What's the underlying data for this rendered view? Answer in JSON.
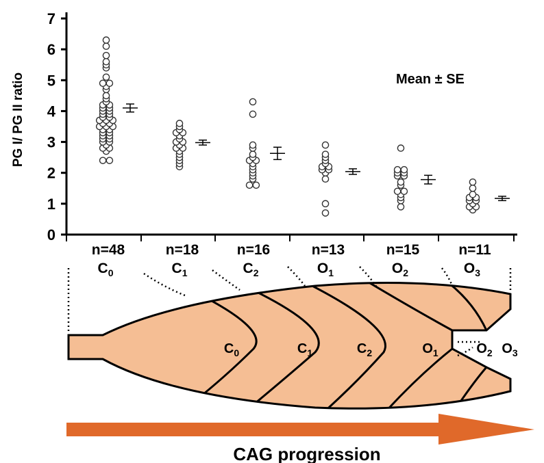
{
  "chart_data": {
    "type": "scatter",
    "ylabel": "PG I/ PG II ratio",
    "xlabel": "",
    "ylim": [
      0,
      7
    ],
    "yticks": [
      0,
      1,
      2,
      3,
      4,
      5,
      6,
      7
    ],
    "annotation": "Mean ± SE",
    "groups": [
      {
        "n_label": "n=48",
        "label": "C",
        "sub": "0",
        "points": [
          6.3,
          6.1,
          5.8,
          5.6,
          5.5,
          5.4,
          5.1,
          4.9,
          4.9,
          4.8,
          4.7,
          4.5,
          4.4,
          4.3,
          4.2,
          4.2,
          4.1,
          4.1,
          4.0,
          4.0,
          3.9,
          3.9,
          3.8,
          3.8,
          3.7,
          3.7,
          3.7,
          3.6,
          3.6,
          3.5,
          3.5,
          3.5,
          3.4,
          3.4,
          3.3,
          3.3,
          3.2,
          3.2,
          3.1,
          3.1,
          3.0,
          3.0,
          2.9,
          2.8,
          2.8,
          2.7,
          2.4,
          2.4
        ],
        "mean": 4.1,
        "se": 0.13
      },
      {
        "n_label": "n=18",
        "label": "C",
        "sub": "1",
        "points": [
          3.6,
          3.5,
          3.4,
          3.3,
          3.3,
          3.2,
          3.1,
          3.0,
          3.0,
          2.9,
          2.8,
          2.8,
          2.7,
          2.6,
          2.5,
          2.4,
          2.3,
          2.2
        ],
        "mean": 2.98,
        "se": 0.08
      },
      {
        "n_label": "n=16",
        "label": "C",
        "sub": "2",
        "points": [
          4.3,
          3.9,
          2.9,
          2.8,
          2.6,
          2.5,
          2.4,
          2.4,
          2.3,
          2.2,
          2.1,
          2.0,
          1.9,
          1.8,
          1.6,
          1.6
        ],
        "mean": 2.63,
        "se": 0.2
      },
      {
        "n_label": "n=13",
        "label": "O",
        "sub": "1",
        "points": [
          2.9,
          2.6,
          2.5,
          2.4,
          2.3,
          2.2,
          2.2,
          2.1,
          2.0,
          1.8,
          1.0,
          0.7,
          2.1
        ],
        "mean": 2.04,
        "se": 0.09
      },
      {
        "n_label": "n=15",
        "label": "O",
        "sub": "2",
        "points": [
          2.8,
          2.1,
          2.1,
          2.0,
          2.0,
          1.9,
          1.9,
          1.7,
          1.6,
          1.4,
          1.4,
          1.3,
          1.2,
          1.1,
          0.9
        ],
        "mean": 1.78,
        "se": 0.14
      },
      {
        "n_label": "n=11",
        "label": "O",
        "sub": "3",
        "points": [
          1.7,
          1.5,
          1.3,
          1.2,
          1.2,
          1.1,
          1.1,
          1.0,
          0.9,
          0.9,
          0.8
        ],
        "mean": 1.17,
        "se": 0.07
      }
    ]
  },
  "diagram": {
    "stages": [
      {
        "label": "C",
        "sub": "0"
      },
      {
        "label": "C",
        "sub": "1"
      },
      {
        "label": "C",
        "sub": "2"
      },
      {
        "label": "O",
        "sub": "1"
      },
      {
        "label": "O",
        "sub": "2"
      },
      {
        "label": "O",
        "sub": "3"
      }
    ],
    "arrow_label": "CAG progression",
    "stomach_fill": "#f5be94",
    "arrow_color": "#e0692a"
  }
}
